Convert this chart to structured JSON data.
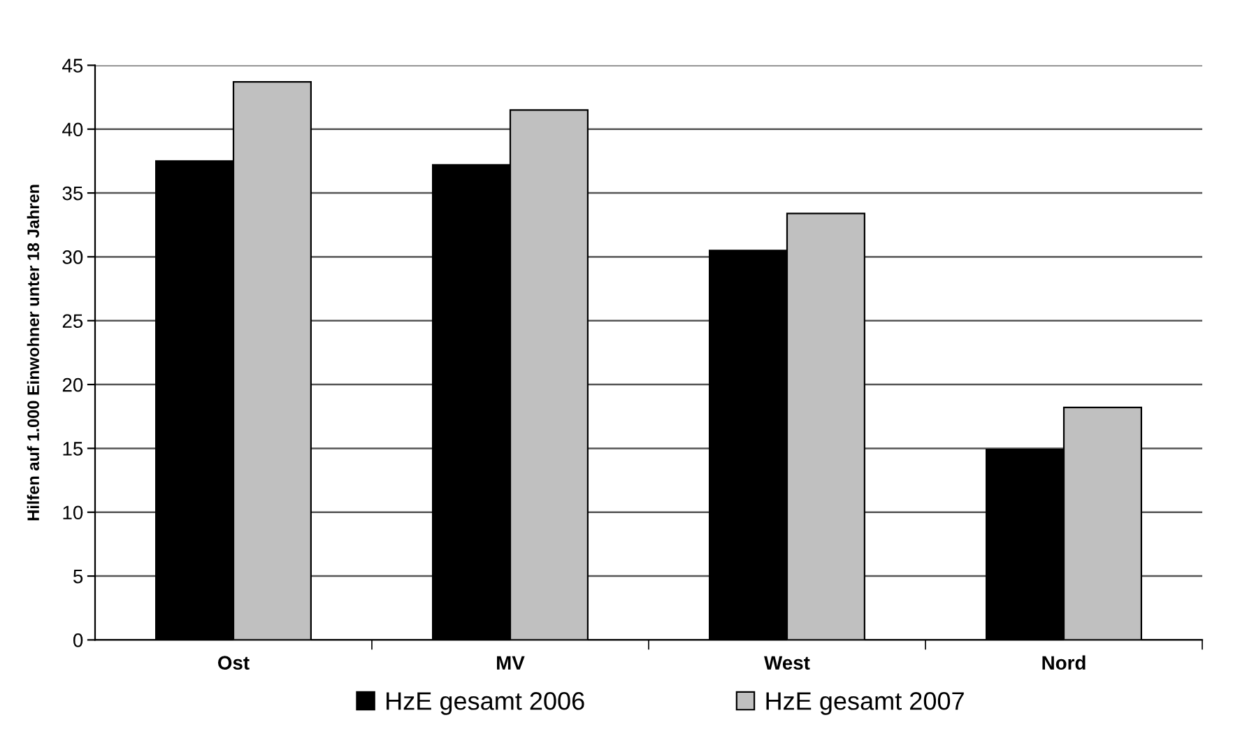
{
  "chart_data": {
    "type": "bar",
    "ylabel": "Hilfen auf 1.000 Einwohner unter 18 Jahren",
    "categories": [
      "Ost",
      "MV",
      "West",
      "Nord"
    ],
    "series": [
      {
        "name": "HzE gesamt 2006",
        "color": "#000000",
        "values": [
          37.5,
          37.2,
          30.5,
          14.9
        ]
      },
      {
        "name": "HzE gesamt 2007",
        "color": "#c0c0c0",
        "values": [
          43.7,
          41.5,
          33.4,
          18.2
        ]
      }
    ],
    "ylim": [
      0,
      45
    ],
    "yticks": [
      0,
      5,
      10,
      15,
      20,
      25,
      30,
      35,
      40,
      45
    ],
    "grid": "y",
    "legend": "bottom"
  }
}
